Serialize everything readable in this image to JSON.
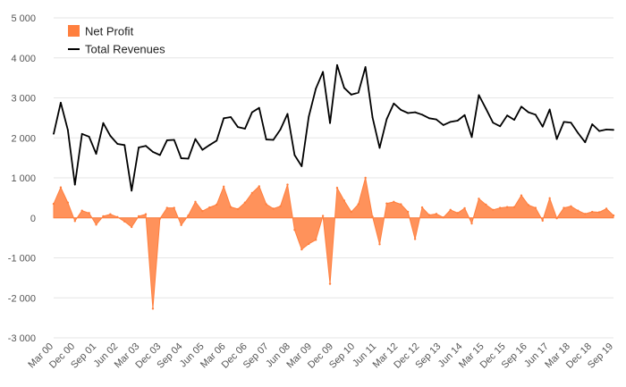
{
  "chart_data": {
    "type": "line",
    "title": "",
    "xlabel": "",
    "ylabel": "",
    "ylim": [
      -3000,
      5000
    ],
    "y_ticks": [
      -3000,
      -2000,
      -1000,
      0,
      1000,
      2000,
      3000,
      4000,
      5000
    ],
    "y_tick_labels": [
      "-3 000",
      "-2 000",
      "-1 000",
      "0",
      "1 000",
      "2 000",
      "3 000",
      "4 000",
      "5 000"
    ],
    "x_tick_labels": [
      "Mar 00",
      "Dec 00",
      "Sep 01",
      "Jun 02",
      "Mar 03",
      "Dec 03",
      "Sep 04",
      "Jun 05",
      "Mar 06",
      "Dec 06",
      "Sep 07",
      "Jun 08",
      "Mar 09",
      "Dec 09",
      "Sep 10",
      "Jun 11",
      "Mar 12",
      "Dec 12",
      "Sep 13",
      "Jun 14",
      "Mar 15",
      "Dec 15",
      "Sep 16",
      "Jun 17",
      "Mar 18",
      "Dec 18",
      "Sep 19"
    ],
    "legend": {
      "position": "top-left",
      "entries": [
        "Net Profit",
        "Total Revenues"
      ]
    },
    "series": [
      {
        "name": "Total Revenues",
        "kind": "line",
        "color": "#000000",
        "values": [
          2100,
          2880,
          2200,
          830,
          2100,
          2030,
          1600,
          2370,
          2050,
          1850,
          1820,
          680,
          1760,
          1800,
          1650,
          1570,
          1940,
          1950,
          1490,
          1480,
          1970,
          1700,
          1820,
          1930,
          2490,
          2520,
          2270,
          2230,
          2640,
          2750,
          1960,
          1950,
          2210,
          2600,
          1570,
          1290,
          2530,
          3230,
          3650,
          2370,
          3820,
          3250,
          3080,
          3130,
          3770,
          2510,
          1750,
          2470,
          2860,
          2700,
          2620,
          2640,
          2580,
          2490,
          2460,
          2320,
          2400,
          2430,
          2570,
          2020,
          3070,
          2730,
          2380,
          2290,
          2560,
          2450,
          2780,
          2640,
          2580,
          2280,
          2710,
          1970,
          2400,
          2380,
          2120,
          1890,
          2340,
          2170,
          2210,
          2200
        ]
      },
      {
        "name": "Net Profit",
        "kind": "area",
        "color": "#ff7f3e",
        "values": [
          350,
          760,
          380,
          -80,
          180,
          120,
          -170,
          40,
          90,
          20,
          -90,
          -230,
          40,
          90,
          -2270,
          -20,
          250,
          250,
          -180,
          60,
          400,
          170,
          260,
          330,
          780,
          270,
          220,
          380,
          620,
          790,
          340,
          230,
          290,
          830,
          -300,
          -790,
          -650,
          -550,
          50,
          -1650,
          750,
          430,
          150,
          340,
          1000,
          30,
          -660,
          360,
          400,
          340,
          150,
          -530,
          260,
          70,
          100,
          10,
          200,
          120,
          240,
          -140,
          480,
          330,
          200,
          250,
          270,
          270,
          560,
          320,
          250,
          -70,
          490,
          -10,
          250,
          290,
          180,
          100,
          150,
          140,
          230,
          60
        ]
      }
    ]
  }
}
